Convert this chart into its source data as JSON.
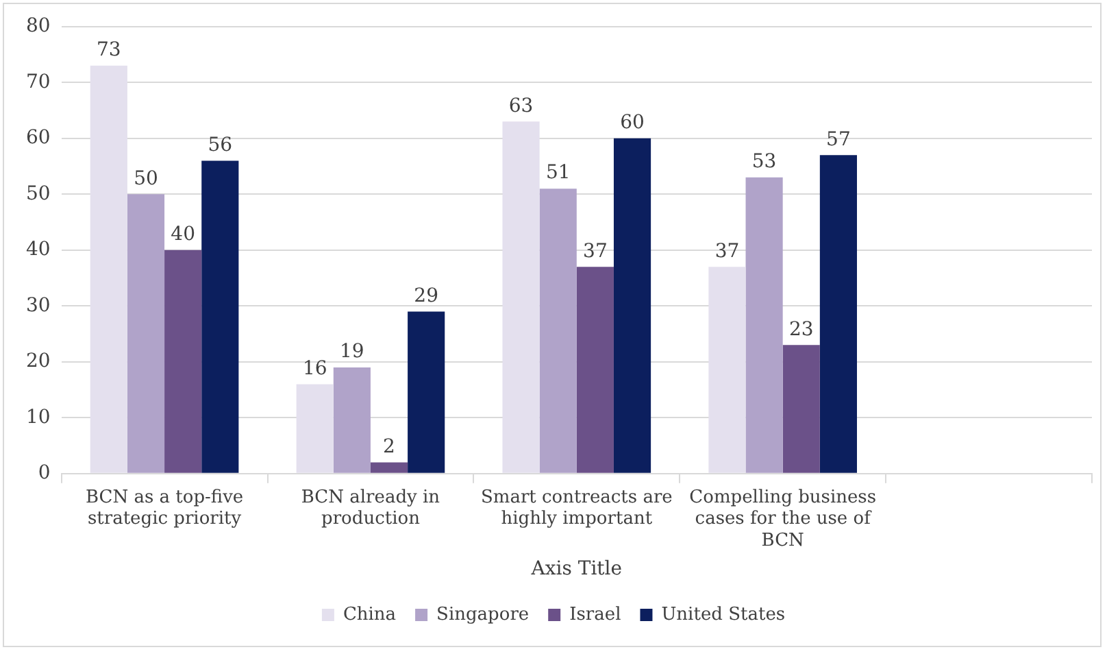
{
  "chart_data": {
    "type": "bar",
    "xlabel": "Axis Title",
    "categories": [
      "BCN as a top-five strategic priority",
      "BCN already in production",
      "Smart contreacts are highly important",
      "Compelling business cases for the use of BCN",
      null
    ],
    "series": [
      {
        "name": "China",
        "color": "#e4e0ee",
        "values": [
          73,
          16,
          63,
          37,
          null
        ]
      },
      {
        "name": "Singapore",
        "color": "#b0a3c9",
        "values": [
          50,
          19,
          51,
          53,
          null
        ]
      },
      {
        "name": "Israel",
        "color": "#6b5189",
        "values": [
          40,
          2,
          37,
          23,
          null
        ]
      },
      {
        "name": "United States",
        "color": "#0c1f5e",
        "values": [
          56,
          29,
          60,
          57,
          null
        ]
      }
    ],
    "ylim": [
      0,
      80
    ],
    "yticks": [
      0,
      10,
      20,
      30,
      40,
      50,
      60,
      70,
      80
    ],
    "grid": "y",
    "legend": "bottom",
    "data_labels": true
  }
}
